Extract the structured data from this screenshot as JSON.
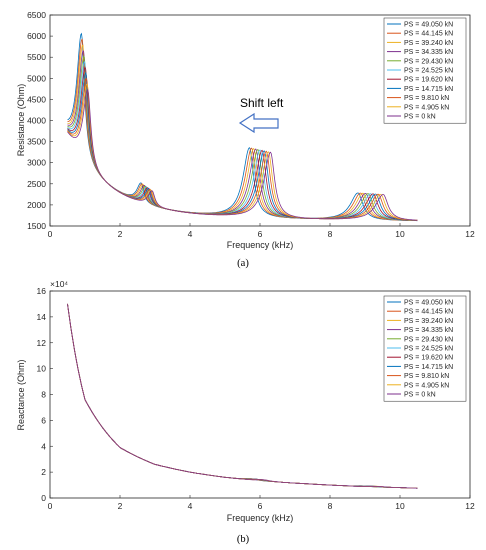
{
  "chart_data": [
    {
      "type": "line",
      "panel_caption": "(a)",
      "xlabel": "Frequency (kHz)",
      "ylabel": "Resistance (Ohm)",
      "xlim": [
        0,
        12
      ],
      "ylim": [
        1500,
        6500
      ],
      "xticks": [
        "0",
        "2",
        "4",
        "6",
        "8",
        "10",
        "12"
      ],
      "yticks": [
        "1500",
        "2000",
        "2500",
        "3000",
        "3500",
        "4000",
        "4500",
        "5000",
        "5500",
        "6000",
        "6500"
      ],
      "grid": false,
      "legend_position": "top-right",
      "annotation": "Shift left",
      "annotation_arrow": "left",
      "x_range_data": [
        0.5,
        10.5
      ],
      "series": [
        {
          "name": "PS = 49.050 kN",
          "color": "#0072BD",
          "shift": 0.0
        },
        {
          "name": "PS = 44.145 kN",
          "color": "#D95319",
          "shift": 0.04
        },
        {
          "name": "PS = 39.240 kN",
          "color": "#EDB120",
          "shift": 0.08
        },
        {
          "name": "PS = 34.335 kN",
          "color": "#7E2F8E",
          "shift": 0.12
        },
        {
          "name": "PS = 29.430 kN",
          "color": "#77AC30",
          "shift": 0.16
        },
        {
          "name": "PS = 24.525 kN",
          "color": "#4DBEEE",
          "shift": 0.2
        },
        {
          "name": "PS = 19.620 kN",
          "color": "#A2142F",
          "shift": 0.24
        },
        {
          "name": "PS = 14.715 kN",
          "color": "#0072BD",
          "shift": 0.28
        },
        {
          "name": "PS = 9.810 kN",
          "color": "#D95319",
          "shift": 0.32
        },
        {
          "name": "PS = 4.905 kN",
          "color": "#EDB120",
          "shift": 0.36
        },
        {
          "name": "PS = 0 kN",
          "color": "#7E2F8E",
          "shift": 0.4
        }
      ],
      "resonance_peaks": [
        {
          "f_kHz": 0.9,
          "peak_ohm": 6050
        },
        {
          "f_kHz": 2.6,
          "peak_ohm": 2500
        },
        {
          "f_kHz": 5.7,
          "peak_ohm": 3350
        },
        {
          "f_kHz": 8.8,
          "peak_ohm": 2280
        }
      ],
      "baseline_start_ohm": 3400,
      "baseline_end_ohm": 1580
    },
    {
      "type": "line",
      "panel_caption": "(b)",
      "xlabel": "Frequency (kHz)",
      "ylabel": "Reactance (Ohm)",
      "exponent_label": "×10⁴",
      "xlim": [
        0,
        12
      ],
      "ylim": [
        0,
        16
      ],
      "y_unit_multiplier": 10000,
      "xticks": [
        "0",
        "2",
        "4",
        "6",
        "8",
        "10",
        "12"
      ],
      "yticks": [
        "0",
        "2",
        "4",
        "6",
        "8",
        "10",
        "12",
        "14",
        "16"
      ],
      "grid": false,
      "legend_position": "top-right",
      "x_range_data": [
        0.5,
        10.5
      ],
      "curve": {
        "x_kHz": [
          0.5,
          1,
          2,
          3,
          4,
          5,
          6,
          7,
          8,
          9,
          10,
          10.5
        ],
        "y_x1e4": [
          15.0,
          7.6,
          3.9,
          2.6,
          2.0,
          1.6,
          1.35,
          1.15,
          1.0,
          0.88,
          0.8,
          0.76
        ]
      },
      "series": [
        {
          "name": "PS = 49.050 kN",
          "color": "#0072BD"
        },
        {
          "name": "PS = 44.145 kN",
          "color": "#D95319"
        },
        {
          "name": "PS = 39.240 kN",
          "color": "#EDB120"
        },
        {
          "name": "PS = 34.335 kN",
          "color": "#7E2F8E"
        },
        {
          "name": "PS = 29.430 kN",
          "color": "#77AC30"
        },
        {
          "name": "PS = 24.525 kN",
          "color": "#4DBEEE"
        },
        {
          "name": "PS = 19.620 kN",
          "color": "#A2142F"
        },
        {
          "name": "PS = 14.715 kN",
          "color": "#0072BD"
        },
        {
          "name": "PS = 9.810 kN",
          "color": "#D95319"
        },
        {
          "name": "PS = 4.905 kN",
          "color": "#EDB120"
        },
        {
          "name": "PS = 0 kN",
          "color": "#7E2F8E"
        }
      ]
    }
  ]
}
